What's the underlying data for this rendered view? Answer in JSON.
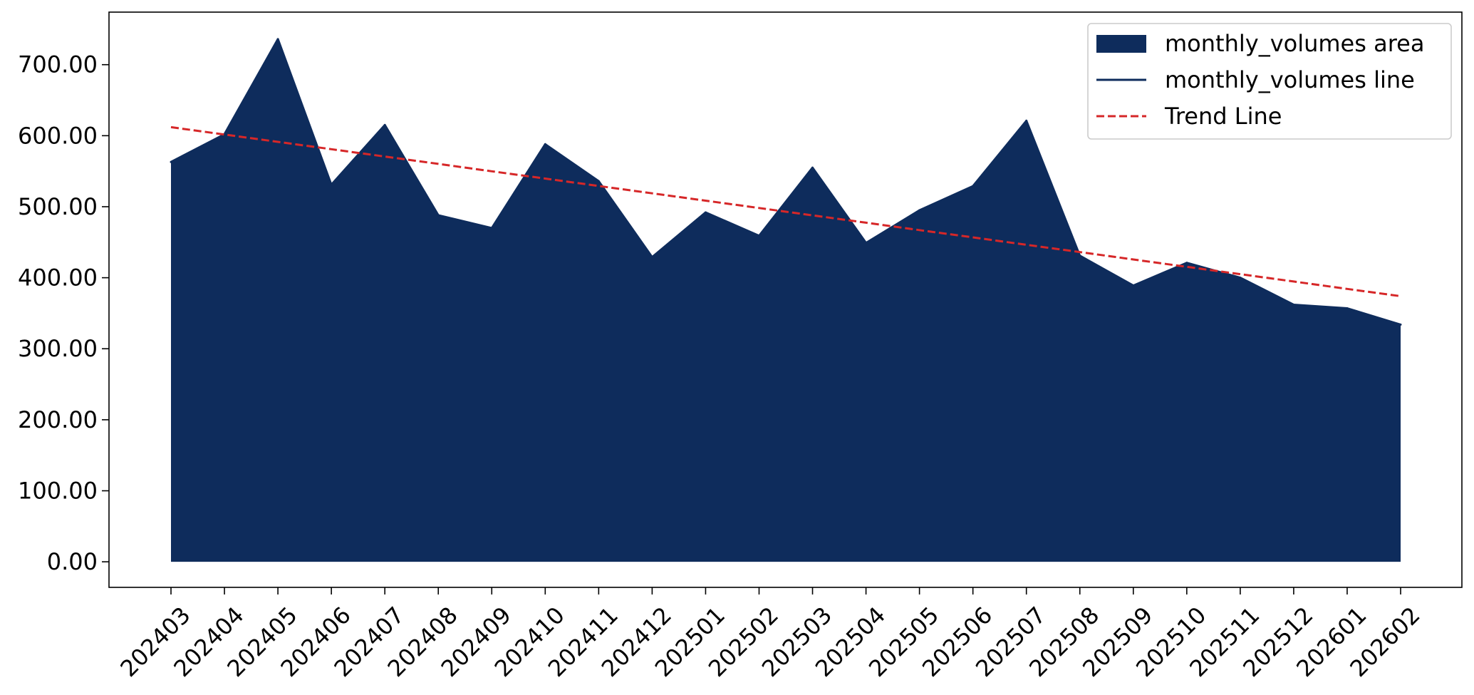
{
  "chart_data": {
    "type": "area",
    "title": "",
    "xlabel": "",
    "ylabel": "",
    "categories": [
      "202403",
      "202404",
      "202405",
      "202406",
      "202407",
      "202408",
      "202409",
      "202410",
      "202411",
      "202412",
      "202501",
      "202502",
      "202503",
      "202504",
      "202505",
      "202506",
      "202507",
      "202508",
      "202509",
      "202510",
      "202511",
      "202512",
      "202601",
      "202602"
    ],
    "series": [
      {
        "name": "monthly_volumes area",
        "kind": "area",
        "color": "#0e2c5c",
        "values": [
          563,
          602,
          736,
          531,
          615,
          488,
          470,
          588,
          536,
          429,
          492,
          459,
          555,
          449,
          495,
          529,
          621,
          431,
          389,
          421,
          400,
          362,
          357,
          334
        ]
      },
      {
        "name": "monthly_volumes line",
        "kind": "line",
        "color": "#0e2c5c",
        "values": [
          563,
          602,
          736,
          531,
          615,
          488,
          470,
          588,
          536,
          429,
          492,
          459,
          555,
          449,
          495,
          529,
          621,
          431,
          389,
          421,
          400,
          362,
          357,
          334
        ]
      },
      {
        "name": "Trend Line",
        "kind": "trend",
        "color": "#d62728",
        "style": "dashed",
        "values": [
          612,
          601.7,
          591.3,
          581,
          570.6,
          560.3,
          549.9,
          539.6,
          529.2,
          518.9,
          508.5,
          498.2,
          487.8,
          477.5,
          467.1,
          456.8,
          446.4,
          436.1,
          425.7,
          415.4,
          405,
          394.7,
          384.3,
          374
        ]
      }
    ],
    "yticks": [
      0,
      100,
      200,
      300,
      400,
      500,
      600,
      700
    ],
    "ytick_labels": [
      "0.00",
      "100.00",
      "200.00",
      "300.00",
      "400.00",
      "500.00",
      "600.00",
      "700.00"
    ],
    "ylim": [
      -36,
      774
    ],
    "grid": false,
    "legend": {
      "position": "top-right"
    }
  }
}
